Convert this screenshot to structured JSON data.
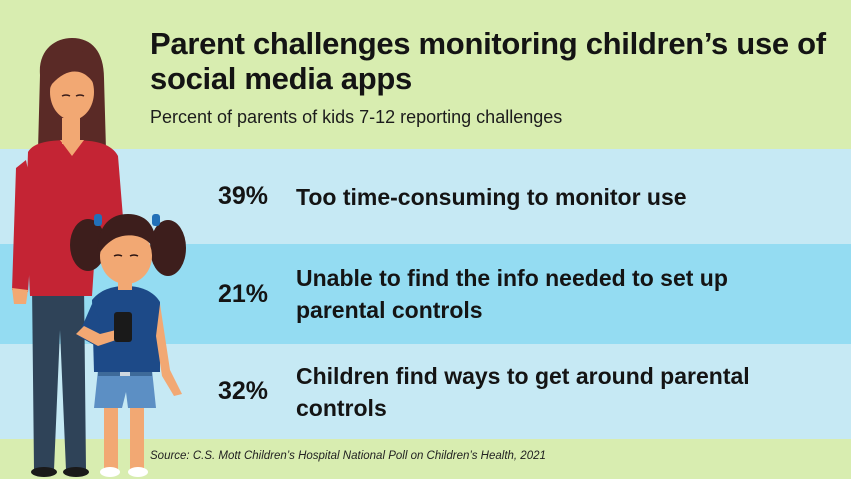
{
  "title": "Parent challenges monitoring children’s use of social media apps",
  "subtitle": "Percent of parents of kids 7-12 reporting challenges",
  "stats": [
    {
      "percent": "39%",
      "label": "Too time-consuming to monitor use"
    },
    {
      "percent": "21%",
      "label": "Unable to find the info needed to set up parental controls"
    },
    {
      "percent": "32%",
      "label": "Children find ways to get around parental controls"
    }
  ],
  "source": "Source: C.S. Mott Children’s Hospital National Poll on Children’s Health, 2021",
  "colors": {
    "background": "#d8edb0",
    "band_light": "#c6e9f4",
    "band_dark": "#94dcf2",
    "mother_shirt": "#c42434",
    "girl_shirt": "#1d4a88"
  }
}
